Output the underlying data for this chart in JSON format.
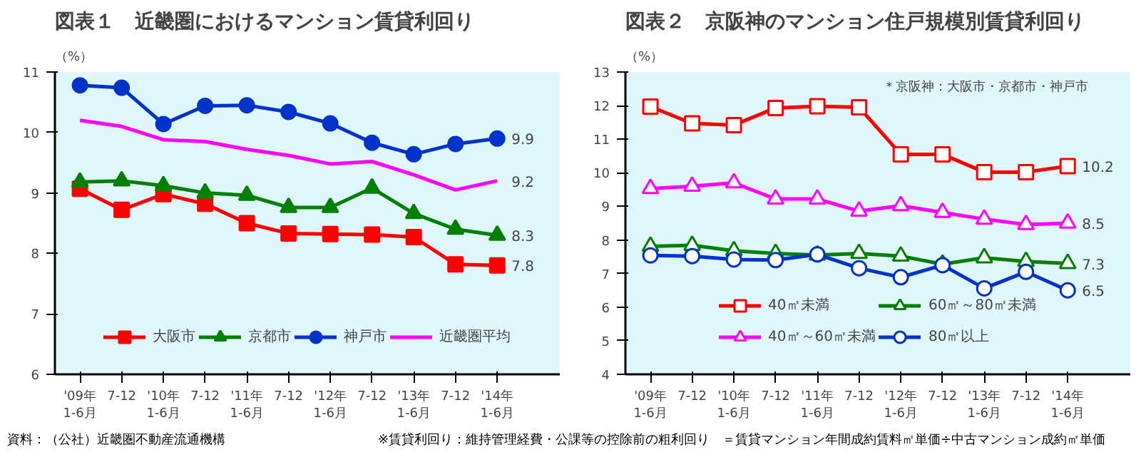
{
  "chart_data": [
    {
      "type": "line",
      "title": "図表１　近畿圏におけるマンション賃貸利回り",
      "ylabel": "（%）",
      "categories": [
        "'09年\n1-6月",
        "7-12",
        "'10年\n1-6月",
        "7-12",
        "'11年\n1-6月",
        "7-12",
        "'12年\n1-6月",
        "7-12",
        "'13年\n1-6月",
        "7-12",
        "'14年\n1-6月"
      ],
      "ylim": [
        6,
        11
      ],
      "yticks": [
        6,
        7,
        8,
        9,
        10,
        11
      ],
      "grid": false,
      "legend": "bottom",
      "series": [
        {
          "name": "大阪市",
          "color": "#ff0000",
          "marker": "square",
          "values": [
            9.07,
            8.72,
            8.98,
            8.82,
            8.5,
            8.33,
            8.32,
            8.31,
            8.27,
            7.82,
            7.8
          ],
          "value_labels": [
            null,
            null,
            null,
            null,
            null,
            null,
            null,
            null,
            null,
            null,
            "7.8"
          ]
        },
        {
          "name": "京都市",
          "color": "#008000",
          "marker": "triangle",
          "values": [
            9.18,
            9.2,
            9.12,
            9.0,
            8.96,
            8.76,
            8.76,
            9.08,
            8.66,
            8.4,
            8.3
          ],
          "value_labels": [
            null,
            null,
            null,
            null,
            null,
            null,
            null,
            null,
            null,
            null,
            "8.3"
          ]
        },
        {
          "name": "神戸市",
          "color": "#0033cc",
          "marker": "circle",
          "values": [
            10.78,
            10.74,
            10.14,
            10.44,
            10.45,
            10.34,
            10.15,
            9.83,
            9.64,
            9.81,
            9.9
          ],
          "value_labels": [
            null,
            null,
            null,
            null,
            null,
            null,
            null,
            null,
            null,
            null,
            "9.9"
          ]
        },
        {
          "name": "近畿圏平均",
          "color": "#ff00ff",
          "marker": "none",
          "values": [
            10.2,
            10.1,
            9.88,
            9.85,
            9.72,
            9.62,
            9.48,
            9.52,
            9.3,
            9.05,
            9.2
          ],
          "value_labels": [
            null,
            null,
            null,
            null,
            null,
            null,
            null,
            null,
            null,
            null,
            "9.2"
          ]
        }
      ],
      "annotations": [
        "資料：（公社）近畿圏不動産流通機構"
      ]
    },
    {
      "type": "line",
      "title": "図表２　京阪神のマンション住戸規模別賃貸利回り",
      "ylabel": "（%）",
      "categories": [
        "'09年\n1-6月",
        "7-12",
        "'10年\n1-6月",
        "7-12",
        "'11年\n1-6月",
        "7-12",
        "'12年\n1-6月",
        "7-12",
        "'13年\n1-6月",
        "7-12",
        "'14年\n1-6月"
      ],
      "ylim": [
        4,
        13
      ],
      "yticks": [
        4,
        5,
        6,
        7,
        8,
        9,
        10,
        11,
        12,
        13
      ],
      "grid": false,
      "legend": "bottom",
      "series": [
        {
          "name": "40㎡未満",
          "color": "#ff0000",
          "marker": "square",
          "values": [
            11.97,
            11.47,
            11.42,
            11.93,
            11.98,
            11.95,
            10.55,
            10.55,
            10.02,
            10.02,
            10.2
          ],
          "value_labels": [
            null,
            null,
            null,
            null,
            null,
            null,
            null,
            null,
            null,
            null,
            "10.2"
          ]
        },
        {
          "name": "40㎡～60㎡未満",
          "color": "#ff00ff",
          "marker": "triangle",
          "values": [
            9.53,
            9.6,
            9.7,
            9.22,
            9.22,
            8.86,
            9.02,
            8.82,
            8.62,
            8.46,
            8.5
          ],
          "value_labels": [
            null,
            null,
            null,
            null,
            null,
            null,
            null,
            null,
            null,
            null,
            "8.5"
          ]
        },
        {
          "name": "60㎡～80㎡未満",
          "color": "#008000",
          "marker": "triangle",
          "values": [
            7.81,
            7.84,
            7.68,
            7.6,
            7.55,
            7.6,
            7.52,
            7.28,
            7.47,
            7.36,
            7.3
          ],
          "value_labels": [
            null,
            null,
            null,
            null,
            null,
            null,
            null,
            null,
            null,
            null,
            "7.3"
          ]
        },
        {
          "name": "80㎡以上",
          "color": "#0033cc",
          "marker": "circle",
          "values": [
            7.54,
            7.52,
            7.42,
            7.4,
            7.57,
            7.16,
            6.89,
            7.25,
            6.56,
            7.05,
            6.5
          ],
          "value_labels": [
            null,
            null,
            null,
            null,
            null,
            null,
            null,
            null,
            null,
            null,
            "6.5"
          ]
        }
      ],
      "annotations": [
        "＊京阪神：大阪市・京都市・神戸市",
        "※賃貸利回り：維持管理経費・公課等の控除前の粗利回り　＝賃貸マンション年間成約賃料㎡単価÷中古マンション成約㎡単価"
      ]
    }
  ]
}
